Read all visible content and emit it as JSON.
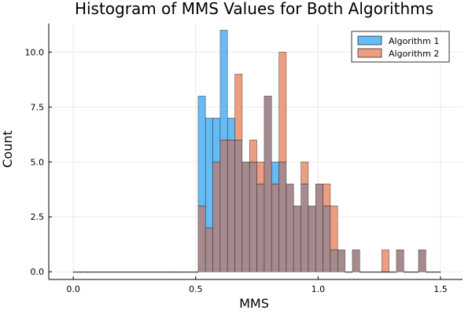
{
  "chart_data": {
    "type": "bar",
    "title": "Histogram of MMS Values for Both Algorithms",
    "xlabel": "MMS",
    "ylabel": "Count",
    "xlim": [
      -0.1,
      1.59
    ],
    "ylim": [
      -0.35,
      11.3
    ],
    "xticks": [
      0.0,
      0.5,
      1.0,
      1.5
    ],
    "xtick_labels": [
      "0.0",
      "0.5",
      "1.0",
      "1.5"
    ],
    "yticks": [
      0.0,
      2.5,
      5.0,
      7.5,
      10.0
    ],
    "ytick_labels": [
      "0.0",
      "2.5",
      "5.0",
      "7.5",
      "10.0"
    ],
    "grid": true,
    "legend_position": "top-right",
    "bin_width": 0.03,
    "bin_start": 0.0,
    "bin_end": 1.5,
    "colors": {
      "algorithm_1": "#66bbf4",
      "algorithm_2": "#ec9d82",
      "overlap": "#a68a8d"
    },
    "series": [
      {
        "name": "Algorithm 1",
        "bins": [
          {
            "x0": 0.51,
            "count": 8
          },
          {
            "x0": 0.54,
            "count": 7
          },
          {
            "x0": 0.57,
            "count": 7
          },
          {
            "x0": 0.6,
            "count": 11
          },
          {
            "x0": 0.63,
            "count": 7
          },
          {
            "x0": 0.66,
            "count": 6
          },
          {
            "x0": 0.69,
            "count": 5
          },
          {
            "x0": 0.72,
            "count": 5
          },
          {
            "x0": 0.75,
            "count": 4
          },
          {
            "x0": 0.78,
            "count": 8
          },
          {
            "x0": 0.81,
            "count": 5
          },
          {
            "x0": 0.84,
            "count": 5
          },
          {
            "x0": 0.87,
            "count": 4
          },
          {
            "x0": 0.9,
            "count": 3
          },
          {
            "x0": 0.93,
            "count": 4
          },
          {
            "x0": 0.96,
            "count": 3
          },
          {
            "x0": 0.99,
            "count": 4
          },
          {
            "x0": 1.02,
            "count": 3
          },
          {
            "x0": 1.05,
            "count": 1
          },
          {
            "x0": 1.08,
            "count": 1
          },
          {
            "x0": 1.14,
            "count": 1
          },
          {
            "x0": 1.32,
            "count": 1
          },
          {
            "x0": 1.41,
            "count": 1
          }
        ]
      },
      {
        "name": "Algorithm 2",
        "bins": [
          {
            "x0": 0.51,
            "count": 3
          },
          {
            "x0": 0.54,
            "count": 2
          },
          {
            "x0": 0.57,
            "count": 5
          },
          {
            "x0": 0.6,
            "count": 6
          },
          {
            "x0": 0.63,
            "count": 6
          },
          {
            "x0": 0.66,
            "count": 9
          },
          {
            "x0": 0.69,
            "count": 5
          },
          {
            "x0": 0.72,
            "count": 6
          },
          {
            "x0": 0.75,
            "count": 5
          },
          {
            "x0": 0.78,
            "count": 8
          },
          {
            "x0": 0.81,
            "count": 4
          },
          {
            "x0": 0.84,
            "count": 10
          },
          {
            "x0": 0.87,
            "count": 4
          },
          {
            "x0": 0.9,
            "count": 3
          },
          {
            "x0": 0.93,
            "count": 5
          },
          {
            "x0": 0.96,
            "count": 3
          },
          {
            "x0": 0.99,
            "count": 4
          },
          {
            "x0": 1.02,
            "count": 4
          },
          {
            "x0": 1.05,
            "count": 3
          },
          {
            "x0": 1.08,
            "count": 1
          },
          {
            "x0": 1.14,
            "count": 1
          },
          {
            "x0": 1.26,
            "count": 1
          },
          {
            "x0": 1.32,
            "count": 1
          },
          {
            "x0": 1.41,
            "count": 1
          }
        ]
      }
    ]
  }
}
